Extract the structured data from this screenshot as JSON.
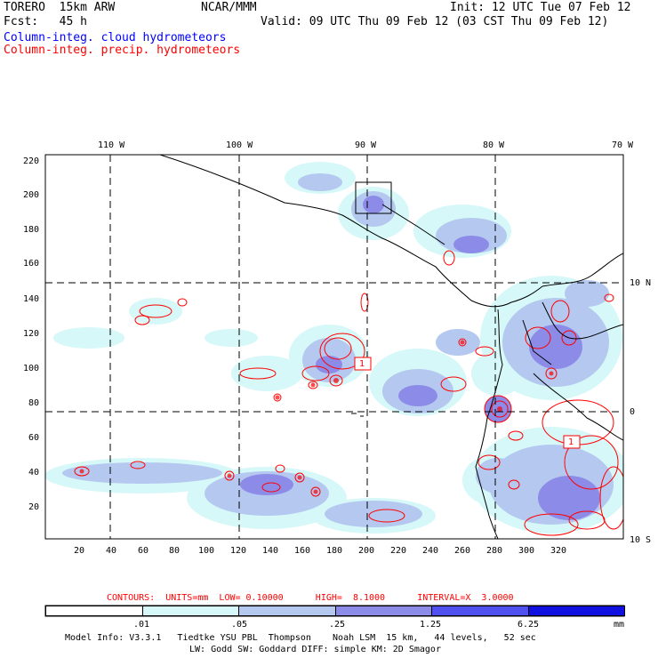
{
  "header": {
    "model": "TORERO  15km ARW",
    "center": "NCAR/MMM",
    "init": "Init: 12 UTC Tue 07 Feb 12",
    "fcst": "Fcst:   45 h",
    "valid": "Valid: 09 UTC Thu 09 Feb 12 (03 CST Thu 09 Feb 12)",
    "field_cloud": "Column-integ. cloud hydrometeors",
    "field_precip": "Column-integ. precip. hydrometeors"
  },
  "axes": {
    "lon_labels": [
      "110 W",
      "100 W",
      "90 W",
      "80 W",
      "70 W"
    ],
    "lat_labels": [
      "10 N",
      "0",
      "10 S"
    ],
    "y_ticks": [
      "220",
      "200",
      "180",
      "160",
      "140",
      "120",
      "100",
      "80",
      "60",
      "40",
      "20"
    ],
    "x_ticks": [
      "20",
      "40",
      "60",
      "80",
      "100",
      "120",
      "140",
      "160",
      "180",
      "200",
      "220",
      "240",
      "260",
      "280",
      "300",
      "320"
    ]
  },
  "contour_box_label": "1",
  "contours_text": "CONTOURS:  UNITS=mm  LOW= 0.10000      HIGH=  8.1000      INTERVAL=X  3.0000",
  "colorbar": {
    "labels": [
      ".01",
      ".05",
      ".25",
      "1.25",
      "6.25"
    ],
    "unit": "mm",
    "colors": [
      "#ffffff",
      "#d6f8f8",
      "#b4c8f0",
      "#8c8ce8",
      "#5050f0",
      "#1010e0"
    ]
  },
  "model_info_line1": "Model Info: V3.3.1   Tiedtke YSU PBL  Thompson    Noah LSM  15 km,   44 levels,   52 sec",
  "model_info_line2": "LW: Godd SW: Goddard DIFF: simple KM: 2D Smagor"
}
